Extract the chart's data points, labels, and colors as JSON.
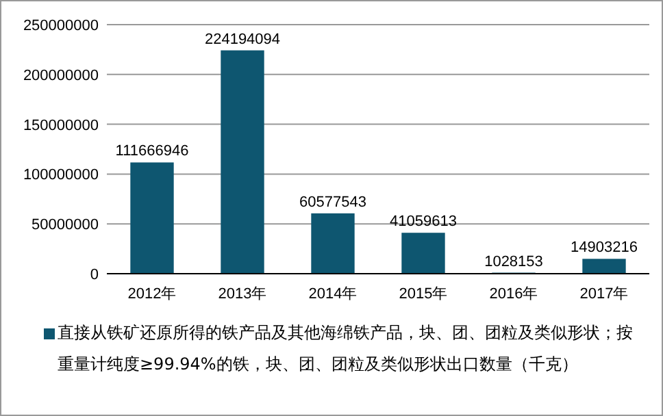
{
  "chart_data": {
    "type": "bar",
    "categories": [
      "2012年",
      "2013年",
      "2014年",
      "2015年",
      "2016年",
      "2017年"
    ],
    "series": [
      {
        "name": "直接从铁矿还原所得的铁产品及其他海绵铁产品，块、团、团粒及类似形状；按重量计纯度≥99.94%的铁，块、团、团粒及类似形状出口数量（千克）",
        "color": "#0e5670",
        "values": [
          111666946,
          224194094,
          60577543,
          41059613,
          1028153,
          14903216
        ]
      }
    ],
    "ylim": [
      0,
      250000000
    ],
    "yticks": [
      0,
      50000000,
      100000000,
      150000000,
      200000000,
      250000000
    ],
    "grid": "y",
    "data_labels": true,
    "legend": "bottom"
  }
}
